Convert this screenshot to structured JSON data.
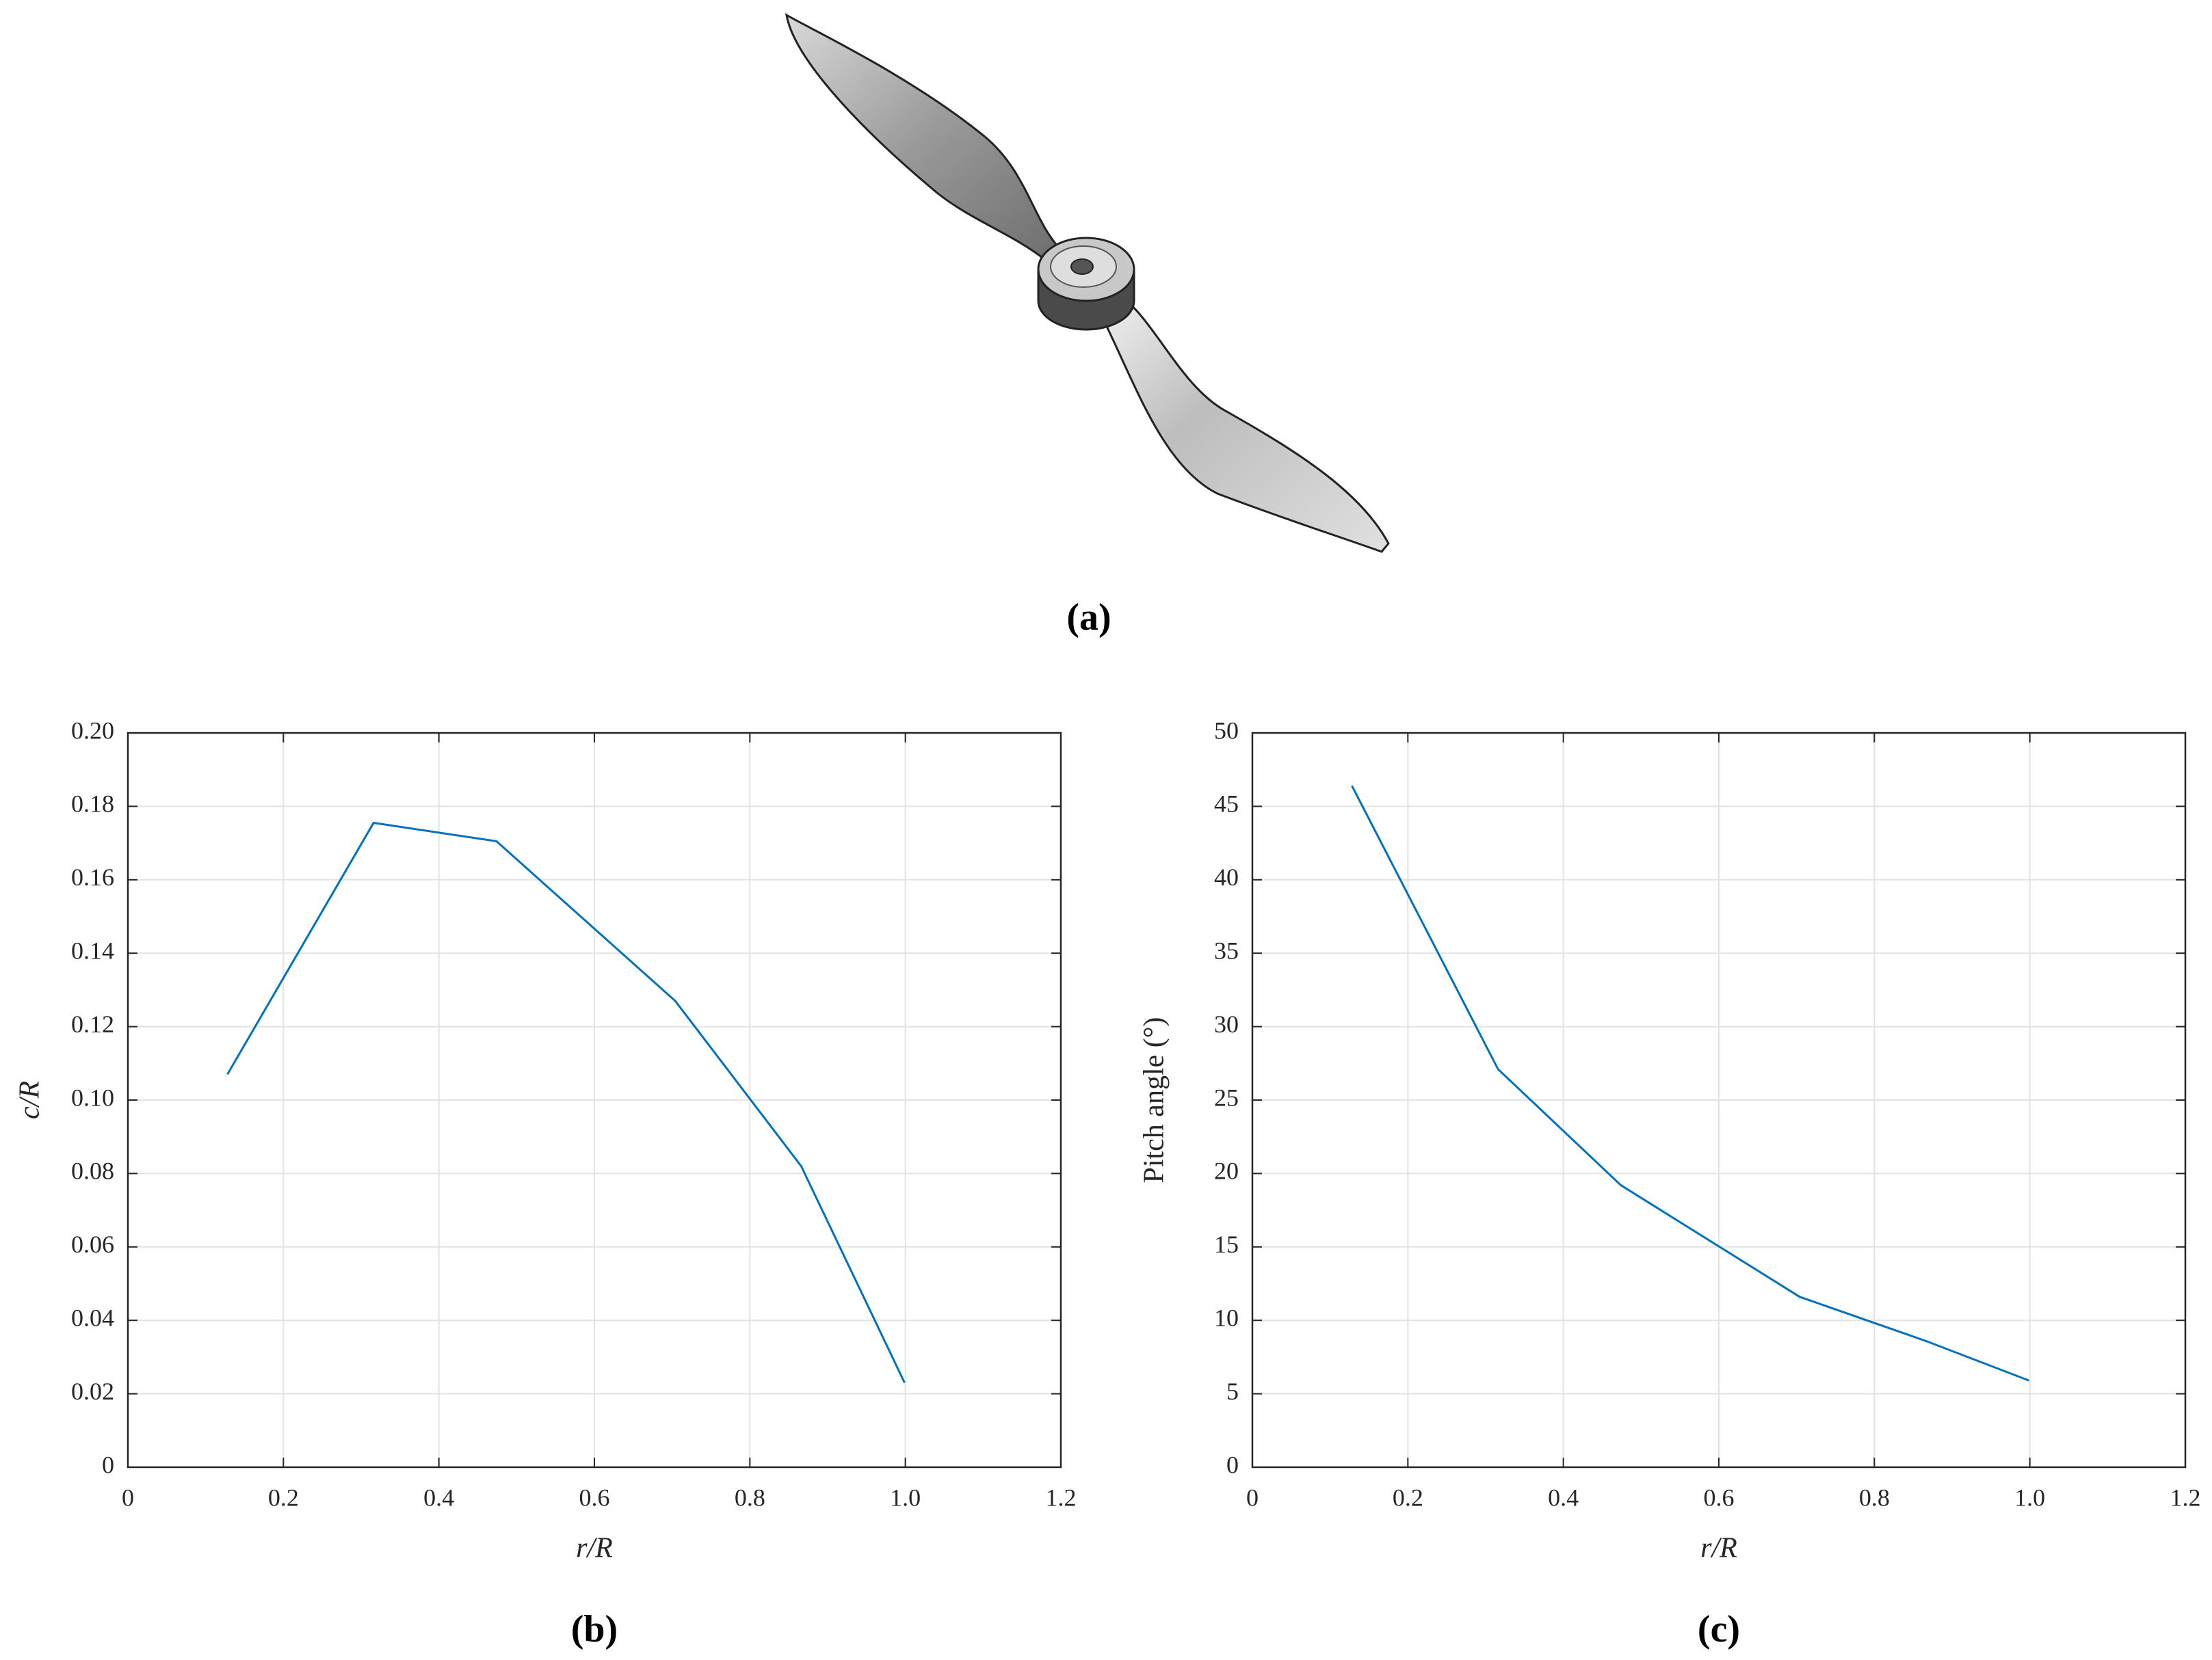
{
  "figure": {
    "panel_label": "(a)"
  },
  "chart_data": [
    {
      "type": "line",
      "panel_label": "(b)",
      "xlabel": "r/R",
      "ylabel": "c/R",
      "x": [
        0.128,
        0.316,
        0.474,
        0.704,
        0.866,
        0.999
      ],
      "series": [
        {
          "name": "c/R",
          "color": "#0072bd",
          "values": [
            0.107,
            0.1755,
            0.1705,
            0.127,
            0.082,
            0.023
          ]
        }
      ],
      "xlim": [
        0,
        1.2
      ],
      "xticks": [
        0,
        0.2,
        0.4,
        0.6,
        0.8,
        {
          "value": 1,
          "label": "1.0"
        },
        1.2
      ],
      "ylim": [
        0,
        0.2
      ],
      "yticks": [
        0,
        0.02,
        0.04,
        0.06,
        0.08,
        {
          "value": 0.1,
          "label": "0.10"
        },
        0.12,
        0.14,
        0.16,
        0.18,
        {
          "value": 0.2,
          "label": "0.20"
        }
      ],
      "grid": true
    },
    {
      "type": "line",
      "panel_label": "(c)",
      "xlabel": "r/R",
      "ylabel": "Pitch angle (°)",
      "x": [
        0.128,
        0.316,
        0.474,
        0.704,
        0.866,
        0.999
      ],
      "series": [
        {
          "name": "Pitch angle",
          "color": "#0072bd",
          "values": [
            46.4,
            27.1,
            19.2,
            11.6,
            8.6,
            5.9
          ]
        }
      ],
      "xlim": [
        0,
        1.2
      ],
      "xticks": [
        0,
        0.2,
        0.4,
        0.6,
        0.8,
        {
          "value": 1,
          "label": "1.0"
        },
        1.2
      ],
      "ylim": [
        0,
        50
      ],
      "yticks": [
        0,
        5,
        10,
        15,
        20,
        25,
        30,
        35,
        40,
        45,
        50
      ],
      "grid": true
    }
  ]
}
